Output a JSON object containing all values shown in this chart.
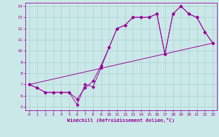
{
  "xlabel": "Windchill (Refroidissement éolien,°C)",
  "bg_color": "#cbe8e8",
  "line_color": "#990099",
  "xlim": [
    -0.5,
    23.5
  ],
  "ylim": [
    4.7,
    14.3
  ],
  "xticks": [
    0,
    1,
    2,
    3,
    4,
    5,
    6,
    7,
    8,
    9,
    10,
    11,
    12,
    13,
    14,
    15,
    16,
    17,
    18,
    19,
    20,
    21,
    22,
    23
  ],
  "yticks": [
    5,
    6,
    7,
    8,
    9,
    10,
    11,
    12,
    13,
    14
  ],
  "series1_x": [
    0,
    1,
    2,
    3,
    4,
    5,
    6,
    7,
    8,
    9,
    10,
    11,
    12,
    13,
    14,
    15,
    16,
    17,
    18,
    19,
    20,
    21,
    22,
    23
  ],
  "series1_y": [
    7.0,
    6.7,
    6.3,
    6.3,
    6.3,
    6.3,
    5.2,
    7.0,
    6.8,
    8.5,
    10.3,
    12.0,
    12.3,
    13.0,
    13.0,
    13.0,
    13.3,
    9.7,
    13.3,
    14.0,
    13.3,
    13.0,
    11.7,
    10.7
  ],
  "series2_x": [
    0,
    1,
    2,
    3,
    4,
    5,
    6,
    7,
    8,
    9,
    10,
    11,
    12,
    13,
    14,
    15,
    16,
    17,
    18,
    19,
    20,
    21,
    22,
    23
  ],
  "series2_y": [
    7.0,
    6.7,
    6.3,
    6.3,
    6.3,
    6.3,
    5.7,
    6.7,
    7.3,
    8.7,
    10.3,
    12.0,
    12.3,
    13.0,
    13.0,
    13.0,
    13.3,
    9.7,
    13.3,
    14.0,
    13.3,
    13.0,
    11.7,
    10.7
  ],
  "series3_x": [
    0,
    23
  ],
  "series3_y": [
    7.0,
    10.7
  ]
}
